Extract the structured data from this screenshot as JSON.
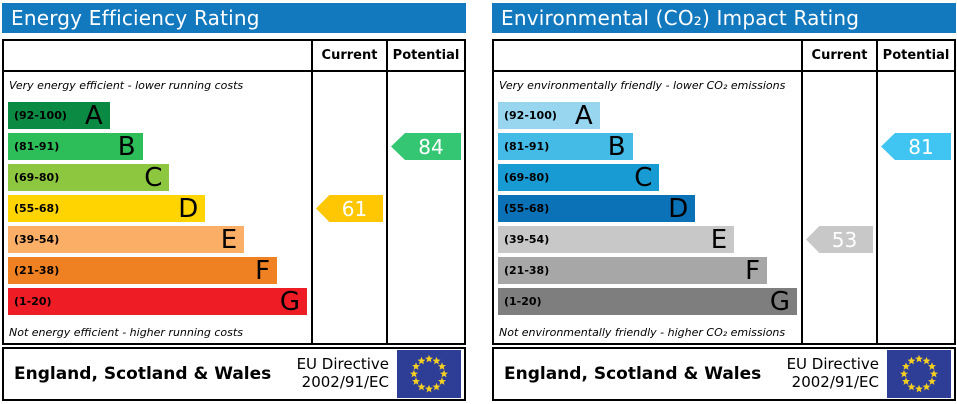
{
  "panels": [
    {
      "id": "energy-efficiency",
      "title": "Energy Efficiency Rating",
      "header_color": "#1379bf",
      "columns": {
        "current": "Current",
        "potential": "Potential"
      },
      "note_top": "Very energy efficient - lower running costs",
      "note_bottom": "Not energy efficient - higher running costs",
      "bands": [
        {
          "range": "(92-100)",
          "letter": "A",
          "color": "#0b8a44",
          "width_pct": 34
        },
        {
          "range": "(81-91)",
          "letter": "B",
          "color": "#2dbd59",
          "width_pct": 45
        },
        {
          "range": "(69-80)",
          "letter": "C",
          "color": "#8dc63f",
          "width_pct": 54
        },
        {
          "range": "(55-68)",
          "letter": "D",
          "color": "#ffd400",
          "width_pct": 66
        },
        {
          "range": "(39-54)",
          "letter": "E",
          "color": "#fbaf66",
          "width_pct": 79
        },
        {
          "range": "(21-38)",
          "letter": "F",
          "color": "#f08122",
          "width_pct": 90
        },
        {
          "range": "(1-20)",
          "letter": "G",
          "color": "#ee1c25",
          "width_pct": 100
        }
      ],
      "arrows": {
        "current": {
          "value": "61",
          "band_index": 3,
          "color": "#fec701"
        },
        "potential": {
          "value": "84",
          "band_index": 1,
          "color": "#35c673"
        }
      },
      "footer": {
        "region": "England, Scotland & Wales",
        "directive_line1": "EU Directive",
        "directive_line2": "2002/91/EC"
      }
    },
    {
      "id": "environmental-co2-impact",
      "title": "Environmental (CO₂) Impact Rating",
      "header_color": "#1379bf",
      "columns": {
        "current": "Current",
        "potential": "Potential"
      },
      "note_top": "Very environmentally friendly - lower CO₂ emissions",
      "note_bottom": "Not environmentally friendly - higher CO₂ emissions",
      "bands": [
        {
          "range": "(92-100)",
          "letter": "A",
          "color": "#98d6f0",
          "width_pct": 34
        },
        {
          "range": "(81-91)",
          "letter": "B",
          "color": "#44bae7",
          "width_pct": 45
        },
        {
          "range": "(69-80)",
          "letter": "C",
          "color": "#189ad3",
          "width_pct": 54
        },
        {
          "range": "(55-68)",
          "letter": "D",
          "color": "#0c72b8",
          "width_pct": 66
        },
        {
          "range": "(39-54)",
          "letter": "E",
          "color": "#c8c8c8",
          "width_pct": 79
        },
        {
          "range": "(21-38)",
          "letter": "F",
          "color": "#a7a7a7",
          "width_pct": 90
        },
        {
          "range": "(1-20)",
          "letter": "G",
          "color": "#7e7e7e",
          "width_pct": 100
        }
      ],
      "arrows": {
        "current": {
          "value": "53",
          "band_index": 4,
          "color": "#c8c8c8"
        },
        "potential": {
          "value": "81",
          "band_index": 1,
          "color": "#40c5f3"
        }
      },
      "footer": {
        "region": "England, Scotland & Wales",
        "directive_line1": "EU Directive",
        "directive_line2": "2002/91/EC"
      }
    }
  ],
  "flag": {
    "background": "#2e3d96",
    "star_color": "#f5d020",
    "star_count": 12
  },
  "chart_data": [
    {
      "type": "bar",
      "title": "Energy Efficiency Rating",
      "categories": [
        "A (92-100)",
        "B (81-91)",
        "C (69-80)",
        "D (55-68)",
        "E (39-54)",
        "F (21-38)",
        "G (1-20)"
      ],
      "values": [
        34,
        45,
        54,
        66,
        79,
        90,
        100
      ],
      "current_rating": 61,
      "current_band": "D",
      "potential_rating": 84,
      "potential_band": "B",
      "xlabel": "",
      "ylabel": "",
      "notes": [
        "Very energy efficient - lower running costs",
        "Not energy efficient - higher running costs"
      ]
    },
    {
      "type": "bar",
      "title": "Environmental (CO₂) Impact Rating",
      "categories": [
        "A (92-100)",
        "B (81-91)",
        "C (69-80)",
        "D (55-68)",
        "E (39-54)",
        "F (21-38)",
        "G (1-20)"
      ],
      "values": [
        34,
        45,
        54,
        66,
        79,
        90,
        100
      ],
      "current_rating": 53,
      "current_band": "E",
      "potential_rating": 81,
      "potential_band": "B",
      "xlabel": "",
      "ylabel": "",
      "notes": [
        "Very environmentally friendly - lower CO₂ emissions",
        "Not environmentally friendly - higher CO₂ emissions"
      ]
    }
  ]
}
